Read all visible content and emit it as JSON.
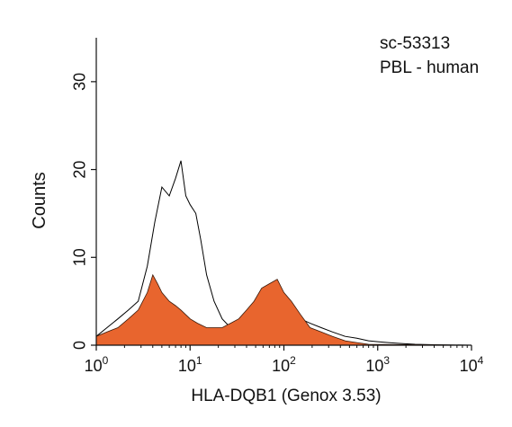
{
  "chart_data": {
    "type": "area",
    "annotations": [
      "sc-53313",
      "PBL - human"
    ],
    "xlabel": "HLA-DQB1 (Genox 3.53)",
    "ylabel": "Counts",
    "x_scale": "log",
    "xlim": [
      1,
      10000
    ],
    "ylim": [
      0,
      35
    ],
    "x_ticks": [
      {
        "value": 1,
        "base": "10",
        "exp": "0"
      },
      {
        "value": 10,
        "base": "10",
        "exp": "1"
      },
      {
        "value": 100,
        "base": "10",
        "exp": "2"
      },
      {
        "value": 1000,
        "base": "10",
        "exp": "3"
      },
      {
        "value": 10000,
        "base": "10",
        "exp": "4"
      }
    ],
    "y_ticks": [
      0,
      10,
      20,
      30
    ],
    "grid": false,
    "series": [
      {
        "style": "outline",
        "color": "#000000",
        "x": [
          1,
          1.3,
          1.7,
          2.2,
          2.8,
          3.5,
          4.2,
          5,
          6,
          7,
          8,
          9,
          10,
          11.5,
          13,
          15,
          18,
          22,
          27,
          33,
          40,
          48,
          58,
          70,
          85,
          100,
          120,
          150,
          190,
          250,
          330,
          450,
          600,
          800,
          1000,
          1300,
          1700,
          2500,
          4000,
          10000
        ],
        "y": [
          1,
          2,
          3,
          4,
          5,
          9,
          14,
          18,
          17,
          19,
          21,
          17,
          16,
          15,
          12,
          8,
          5,
          3,
          2,
          2,
          3,
          3,
          4,
          5,
          5,
          5,
          4,
          3,
          2.5,
          2,
          1.5,
          1,
          0.8,
          0.5,
          0.4,
          0.3,
          0.2,
          0.1,
          0.05,
          0
        ]
      },
      {
        "style": "filled",
        "color": "#e8652e",
        "x": [
          1,
          1.3,
          1.7,
          2.2,
          2.8,
          3.5,
          4,
          4.5,
          5,
          6,
          7,
          8,
          10,
          12,
          15,
          18,
          22,
          27,
          33,
          40,
          48,
          58,
          70,
          85,
          100,
          120,
          150,
          190,
          250,
          330,
          450,
          600,
          800,
          10000
        ],
        "y": [
          1,
          1.5,
          2,
          3,
          4,
          6,
          8,
          7,
          6,
          5,
          4.5,
          4,
          3,
          2.5,
          2,
          2,
          2,
          2.5,
          3,
          4,
          5,
          6.5,
          7,
          7.5,
          6,
          5,
          3.5,
          2,
          1.5,
          1,
          0.5,
          0.3,
          0.1,
          0
        ]
      }
    ]
  }
}
